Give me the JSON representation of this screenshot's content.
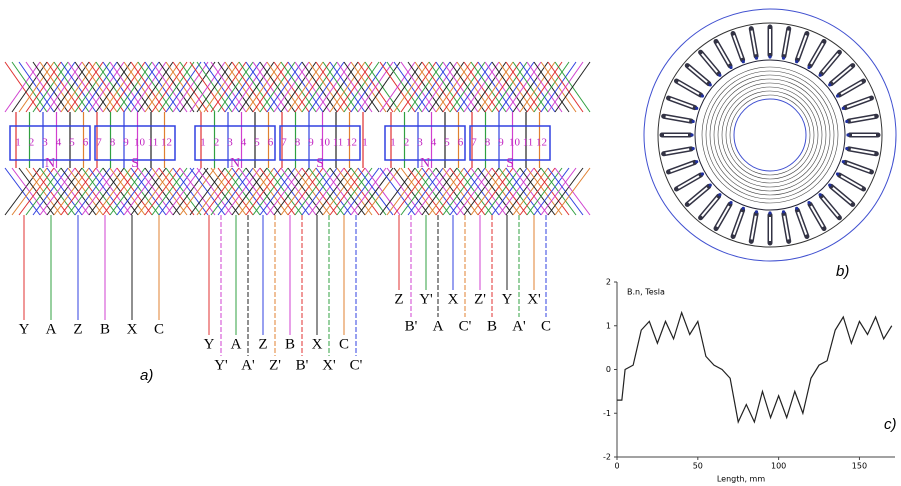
{
  "winding_diagrams": [
    {
      "slots": [
        "1",
        "2",
        "3",
        "4",
        "5",
        "6",
        "7",
        "8",
        "9",
        "10",
        "11",
        "12"
      ],
      "poles": [
        "N",
        "S"
      ],
      "terminals_top": [
        "Y",
        "A",
        "Z",
        "B",
        "X",
        "C"
      ]
    },
    {
      "slots": [
        "1",
        "2",
        "3",
        "4",
        "5",
        "6",
        "7",
        "8",
        "9",
        "10",
        "11",
        "12",
        "1"
      ],
      "poles": [
        "N",
        "S"
      ],
      "terminals_top": [
        "Y",
        "A",
        "Z",
        "B",
        "X",
        "C"
      ],
      "terminals_bottom": [
        "Y'",
        "A'",
        "Z'",
        "B'",
        "X'",
        "C'"
      ]
    },
    {
      "slots": [
        "1",
        "2",
        "3",
        "4",
        "5",
        "6",
        "7",
        "8",
        "9",
        "10",
        "11",
        "12"
      ],
      "poles": [
        "N",
        "S"
      ],
      "terminals_top": [
        "Z",
        "Y'",
        "X",
        "Z'",
        "Y",
        "X'"
      ],
      "terminals_bottom": [
        "B'",
        "A",
        "C'",
        "B",
        "A'",
        "C"
      ]
    }
  ],
  "panel_labels": [
    "a)",
    "b)",
    "c)"
  ],
  "chart_data": {
    "type": "line",
    "y_label": "B.n, Tesla",
    "x_label": "Length, mm",
    "x": [
      0,
      3,
      5,
      10,
      15,
      20,
      25,
      30,
      35,
      40,
      45,
      50,
      55,
      60,
      65,
      70,
      75,
      80,
      85,
      90,
      95,
      100,
      105,
      110,
      115,
      120,
      125,
      130,
      135,
      140,
      145,
      150,
      155,
      160,
      165,
      170
    ],
    "series": [
      {
        "color": "#222222",
        "values": [
          -0.7,
          -0.7,
          0,
          0.1,
          0.9,
          1.1,
          0.6,
          1.1,
          0.7,
          1.3,
          0.8,
          1.1,
          0.3,
          0.1,
          0,
          -0.2,
          -1.2,
          -0.8,
          -1.2,
          -0.5,
          -1.1,
          -0.6,
          -1.1,
          -0.5,
          -1,
          -0.2,
          0.1,
          0.2,
          0.9,
          1.2,
          0.6,
          1.1,
          0.8,
          1.2,
          0.7,
          1
        ]
      }
    ],
    "xlim": [
      0,
      172
    ],
    "ylim": [
      -2,
      2
    ],
    "xticks": [
      0,
      50,
      100,
      150
    ],
    "yticks": [
      -2,
      -1,
      0,
      1,
      2
    ]
  }
}
